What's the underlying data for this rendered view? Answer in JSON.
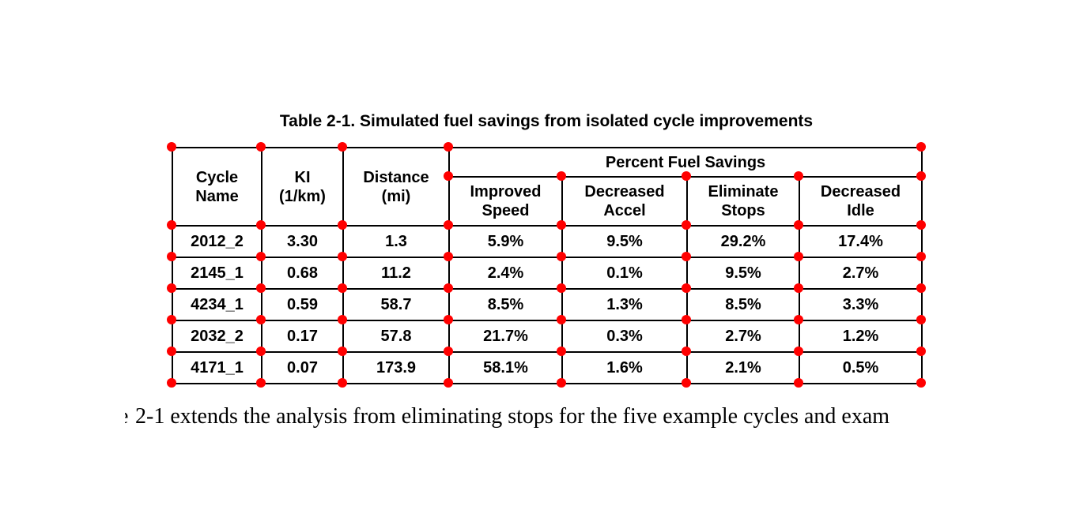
{
  "page": {
    "background_color": "#ffffff",
    "marker_color": "#ff0000",
    "text_color": "#000000"
  },
  "table": {
    "title": "Table 2-1. Simulated fuel savings from isolated cycle improvements",
    "header": {
      "cycle_name": "Cycle\nName",
      "ki": "KI\n(1/km)",
      "distance": "Distance\n(mi)",
      "group": "Percent Fuel Savings",
      "improved_speed": "Improved\nSpeed",
      "decreased_accel": "Decreased\nAccel",
      "eliminate_stops": "Eliminate\nStops",
      "decreased_idle": "Decreased\nIdle"
    },
    "rows": [
      [
        "2012_2",
        "3.30",
        "1.3",
        "5.9%",
        "9.5%",
        "29.2%",
        "17.4%"
      ],
      [
        "2145_1",
        "0.68",
        "11.2",
        "2.4%",
        "0.1%",
        "9.5%",
        "2.7%"
      ],
      [
        "4234_1",
        "0.59",
        "58.7",
        "8.5%",
        "1.3%",
        "8.5%",
        "3.3%"
      ],
      [
        "2032_2",
        "0.17",
        "57.8",
        "21.7%",
        "0.3%",
        "2.7%",
        "1.2%"
      ],
      [
        "4171_1",
        "0.07",
        "173.9",
        "58.1%",
        "1.6%",
        "2.1%",
        "0.5%"
      ]
    ]
  },
  "body_text": {
    "clipped_word_fragment": "e",
    "line": "2-1 extends the analysis from eliminating stops for the five example cycles and exam"
  }
}
